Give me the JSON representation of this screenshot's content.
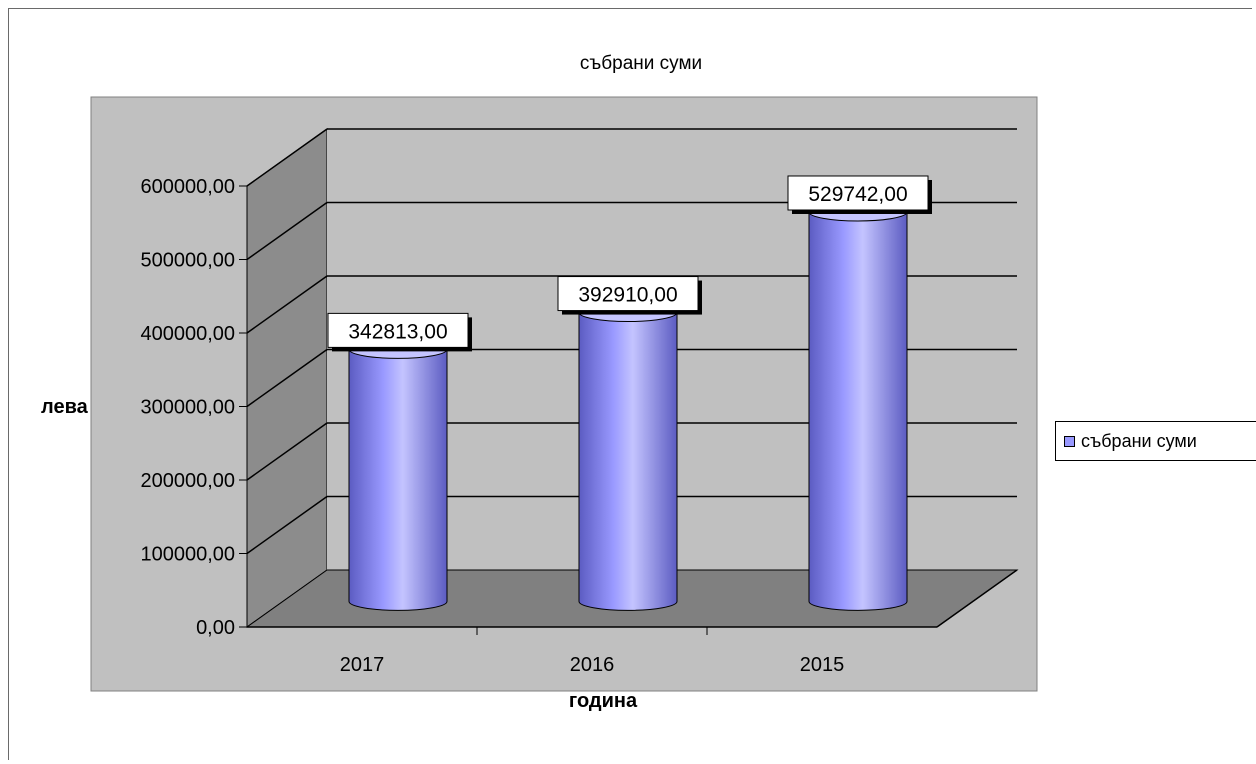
{
  "chart_data": {
    "type": "bar",
    "style": "3d-cylinder",
    "title": "събрани суми",
    "xlabel": "година",
    "ylabel": "лева",
    "categories": [
      "2017",
      "2016",
      "2015"
    ],
    "series": [
      {
        "name": "събрани суми",
        "values": [
          342813.0,
          392910.0,
          529742.0
        ]
      }
    ],
    "data_labels": [
      "342813,00",
      "392910,00",
      "529742,00"
    ],
    "y_ticks": [
      "0,00",
      "100000,00",
      "200000,00",
      "300000,00",
      "400000,00",
      "500000,00",
      "600000,00"
    ],
    "ylim": [
      0,
      600000
    ],
    "grid": true,
    "legend_position": "right",
    "colors": {
      "bar": "#9999ff",
      "bar_light": "#c4c4ff",
      "bar_dark": "#5c5cc2",
      "plot_background": "#c0c0c0",
      "floor": "#808080",
      "side_wall": "#8c8c8c",
      "back_wall": "#c0c0c0"
    }
  }
}
